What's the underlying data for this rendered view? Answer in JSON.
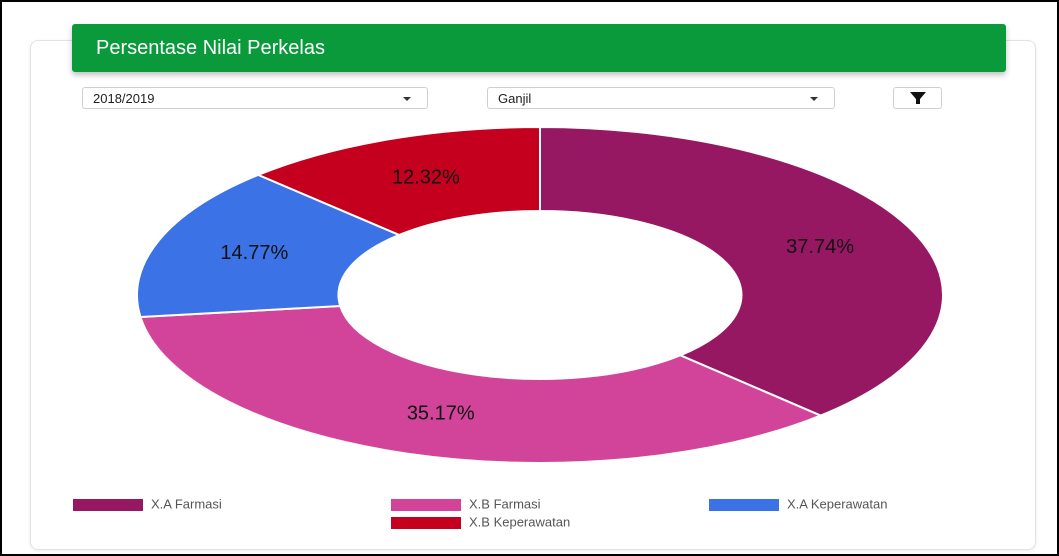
{
  "header": {
    "title": "Persentase Nilai Perkelas"
  },
  "filters": {
    "year": "2018/2019",
    "semester": "Ganjil"
  },
  "chart_data": {
    "type": "pie",
    "categories": [
      "X.A Farmasi",
      "X.B Farmasi",
      "X.A Keperawatan",
      "X.B Keperawatan"
    ],
    "values": [
      37.74,
      35.17,
      14.77,
      12.32
    ],
    "value_labels": [
      "37.74%",
      "35.17%",
      "14.77%",
      "12.32%"
    ],
    "colors": [
      "#961762",
      "#d2449a",
      "#3b72e6",
      "#c4001e"
    ],
    "donut": true
  }
}
